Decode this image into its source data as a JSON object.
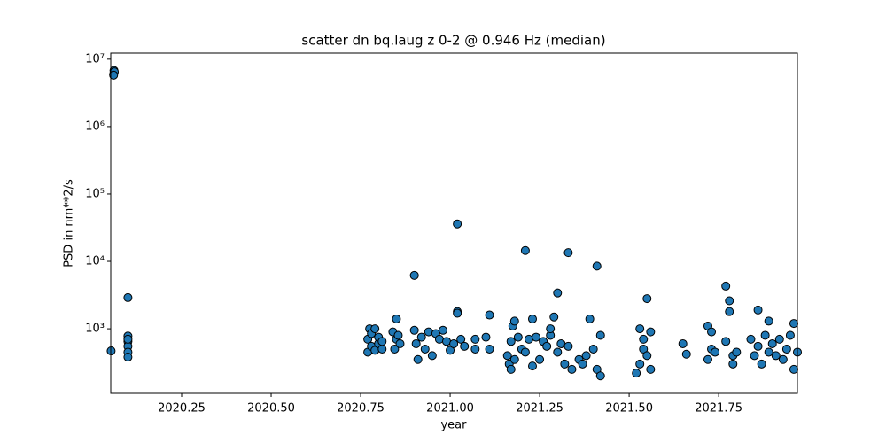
{
  "chart_data": {
    "type": "scatter",
    "title": "scatter dn bq.laug z 0-2 @ 0.946 Hz (median)",
    "x_label": "year",
    "y_label": "PSD in nm**2/s",
    "log_y": true,
    "color": "#1f77b4",
    "edge_color": "#000000",
    "xlim": [
      2020.052,
      2021.97
    ],
    "ylim": [
      110,
      12300000
    ],
    "xticks": [
      2020.25,
      {
        "value": 2020.5,
        "label": "2020.50"
      },
      2020.75,
      {
        "value": 2021.0,
        "label": "2021.00"
      },
      2021.25,
      {
        "value": 2021.5,
        "label": "2021.50"
      },
      2021.75
    ],
    "yticks": [
      {
        "value": 1000,
        "label": "10³"
      },
      {
        "value": 10000,
        "label": "10⁴"
      },
      {
        "value": 100000,
        "label": "10⁵"
      },
      {
        "value": 1000000,
        "label": "10⁶"
      },
      {
        "value": 10000000,
        "label": "10⁷"
      }
    ],
    "x": [
      2020.053,
      2020.06,
      2020.061,
      2020.062,
      2020.06,
      2020.1,
      2020.1,
      2020.1,
      2020.1,
      2020.1,
      2020.1,
      2020.1,
      2020.77,
      2020.77,
      2020.775,
      2020.78,
      2020.78,
      2020.79,
      2020.79,
      2020.8,
      2020.8,
      2020.81,
      2020.81,
      2020.84,
      2020.845,
      2020.85,
      2020.85,
      2020.855,
      2020.86,
      2020.9,
      2020.9,
      2020.905,
      2020.91,
      2020.92,
      2020.93,
      2020.94,
      2020.95,
      2020.96,
      2020.97,
      2020.98,
      2020.99,
      2021.0,
      2021.01,
      2021.02,
      2021.02,
      2021.02,
      2021.03,
      2021.04,
      2021.07,
      2021.07,
      2021.1,
      2021.11,
      2021.11,
      2021.16,
      2021.165,
      2021.17,
      2021.17,
      2021.175,
      2021.18,
      2021.18,
      2021.19,
      2021.2,
      2021.21,
      2021.21,
      2021.22,
      2021.23,
      2021.23,
      2021.24,
      2021.25,
      2021.26,
      2021.27,
      2021.28,
      2021.28,
      2021.29,
      2021.3,
      2021.3,
      2021.31,
      2021.32,
      2021.33,
      2021.33,
      2021.34,
      2021.36,
      2021.37,
      2021.38,
      2021.39,
      2021.4,
      2021.41,
      2021.41,
      2021.42,
      2021.42,
      2021.52,
      2021.53,
      2021.53,
      2021.54,
      2021.54,
      2021.55,
      2021.55,
      2021.56,
      2021.56,
      2021.65,
      2021.66,
      2021.72,
      2021.72,
      2021.73,
      2021.73,
      2021.74,
      2021.77,
      2021.77,
      2021.78,
      2021.78,
      2021.79,
      2021.79,
      2021.8,
      2021.84,
      2021.85,
      2021.86,
      2021.86,
      2021.87,
      2021.88,
      2021.89,
      2021.89,
      2021.9,
      2021.91,
      2021.92,
      2021.93,
      2021.94,
      2021.95,
      2021.96,
      2021.96,
      2021.97
    ],
    "values": [
      470,
      6000000,
      6800000,
      6500000,
      5800000,
      2900,
      780,
      650,
      550,
      450,
      380,
      700,
      450,
      700,
      1000,
      550,
      850,
      480,
      1000,
      600,
      750,
      500,
      650,
      900,
      500,
      1400,
      700,
      800,
      600,
      6200,
      950,
      600,
      350,
      750,
      500,
      900,
      400,
      850,
      700,
      950,
      650,
      480,
      600,
      36000,
      1800,
      1700,
      700,
      550,
      700,
      500,
      750,
      1600,
      500,
      400,
      300,
      250,
      650,
      1100,
      1300,
      350,
      750,
      500,
      14500,
      450,
      700,
      1400,
      280,
      750,
      350,
      650,
      550,
      800,
      1000,
      1500,
      450,
      3400,
      600,
      300,
      13500,
      550,
      250,
      350,
      300,
      400,
      1400,
      500,
      8500,
      250,
      800,
      200,
      220,
      300,
      1000,
      500,
      700,
      2800,
      400,
      250,
      900,
      600,
      420,
      1100,
      350,
      500,
      900,
      450,
      4300,
      650,
      2600,
      1800,
      400,
      300,
      450,
      700,
      400,
      1900,
      550,
      300,
      800,
      1300,
      450,
      600,
      400,
      700,
      350,
      500,
      800,
      250,
      1200,
      450
    ]
  }
}
